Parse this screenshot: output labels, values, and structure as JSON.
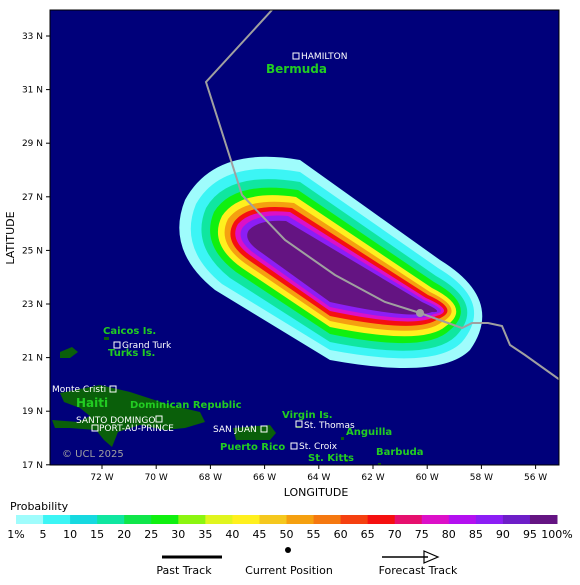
{
  "map": {
    "ylabel": "LATITUDE",
    "xlabel": "LONGITUDE",
    "lat_ticks": [
      "33 N",
      "31 N",
      "29 N",
      "27 N",
      "25 N",
      "23 N",
      "21 N",
      "19 N",
      "17 N"
    ],
    "lon_ticks": [
      "72 W",
      "70 W",
      "68 W",
      "66 W",
      "64 W",
      "62 W",
      "60 W",
      "58 W",
      "56 W"
    ],
    "copyright": "© UCL 2025",
    "colors": {
      "ocean": "#00007a",
      "land": "#0a5f0a",
      "place_label": "#22cc22",
      "track": "#a0a0a0"
    }
  },
  "regions": [
    {
      "label": "Bermuda"
    },
    {
      "label": "Caicos Is."
    },
    {
      "label": "Turks Is."
    },
    {
      "label": "Haiti"
    },
    {
      "label": "Dominican Republic"
    },
    {
      "label": "Puerto Rico"
    },
    {
      "label": "Virgin Is."
    },
    {
      "label": "Anguilla"
    },
    {
      "label": "St. Kitts"
    },
    {
      "label": "Barbuda"
    }
  ],
  "cities": [
    {
      "label": "HAMILTON"
    },
    {
      "label": "Grand Turk"
    },
    {
      "label": "Monte Cristi"
    },
    {
      "label": "SANTO DOMINGO"
    },
    {
      "label": "PORT-AU-PRINCE"
    },
    {
      "label": "SAN JUAN"
    },
    {
      "label": "St. Thomas"
    },
    {
      "label": "St. Croix"
    }
  ],
  "legend": {
    "title": "Probability",
    "ticks": [
      "1%",
      "5",
      "10",
      "15",
      "20",
      "25",
      "30",
      "35",
      "40",
      "45",
      "50",
      "55",
      "60",
      "65",
      "70",
      "75",
      "80",
      "85",
      "90",
      "95",
      "100%"
    ],
    "colors": [
      "#9ffcfc",
      "#3cf5f5",
      "#16d9e0",
      "#10e6a0",
      "#10e64a",
      "#10f010",
      "#8cf510",
      "#e0f51e",
      "#fff01e",
      "#f5c81e",
      "#f5a010",
      "#f57810",
      "#f54010",
      "#f51010",
      "#e6106e",
      "#dc10c8",
      "#b410f0",
      "#8c1ef5",
      "#6e1ec8",
      "#641482"
    ],
    "past_track": "Past Track",
    "current_position": "Current Position",
    "forecast_track": "Forecast Track"
  }
}
